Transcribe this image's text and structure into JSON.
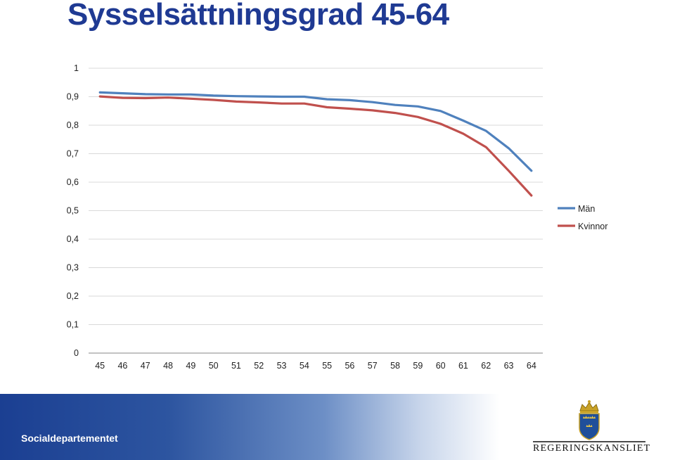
{
  "title": "Sysselsättningsgrad 45-64",
  "footer": {
    "department": "Socialdepartementet",
    "logo_text": "REGERINGSKANSLIET",
    "logo_icon": "crown-shield-three-crowns"
  },
  "chart_data": {
    "type": "line",
    "title": "Sysselsättningsgrad 45-64",
    "categories": [
      "45",
      "46",
      "47",
      "48",
      "49",
      "50",
      "51",
      "52",
      "53",
      "54",
      "55",
      "56",
      "57",
      "58",
      "59",
      "60",
      "61",
      "62",
      "63",
      "64"
    ],
    "y_ticks": [
      "0",
      "0,1",
      "0,2",
      "0,3",
      "0,4",
      "0,5",
      "0,6",
      "0,7",
      "0,8",
      "0,9",
      "1"
    ],
    "ylim": [
      0,
      1
    ],
    "grid": true,
    "legend_position": "right",
    "series": [
      {
        "name": "Män",
        "color": "#4f81bd",
        "values": [
          0.915,
          0.912,
          0.909,
          0.908,
          0.908,
          0.904,
          0.902,
          0.901,
          0.9,
          0.9,
          0.891,
          0.888,
          0.881,
          0.871,
          0.866,
          0.85,
          0.816,
          0.78,
          0.719,
          0.64
        ]
      },
      {
        "name": "Kvinnor",
        "color": "#c0504d",
        "values": [
          0.901,
          0.896,
          0.895,
          0.897,
          0.893,
          0.889,
          0.883,
          0.88,
          0.876,
          0.876,
          0.863,
          0.858,
          0.852,
          0.843,
          0.829,
          0.805,
          0.77,
          0.723,
          0.64,
          0.553
        ]
      }
    ]
  }
}
